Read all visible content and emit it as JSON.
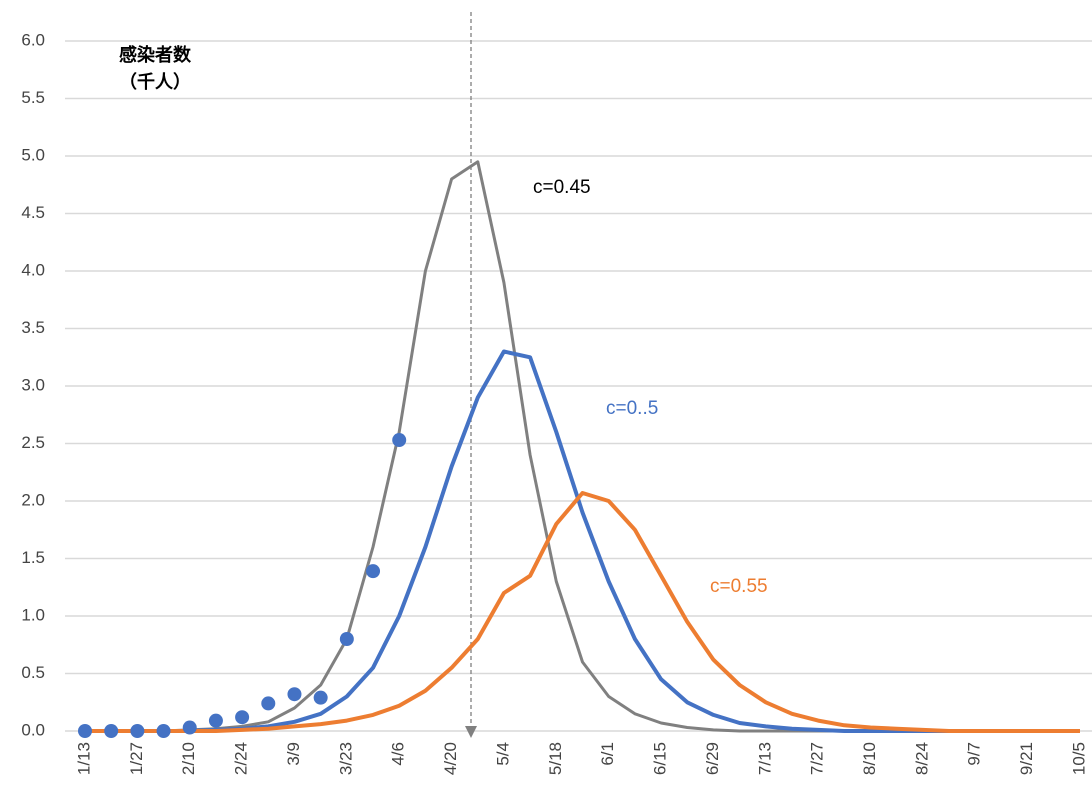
{
  "chart_data": {
    "type": "line",
    "ylabel": [
      "感染者数",
      "（千人）"
    ],
    "categories": [
      "1/13",
      null,
      "1/27",
      null,
      "2/10",
      null,
      "2/24",
      null,
      "3/9",
      null,
      "3/23",
      null,
      "4/6",
      null,
      "4/20",
      null,
      "5/4",
      null,
      "5/18",
      null,
      "6/1",
      null,
      "6/15",
      null,
      "6/29",
      null,
      "7/13",
      null,
      "7/27",
      null,
      "8/10",
      null,
      "8/24",
      null,
      "9/7",
      null,
      "9/21",
      null,
      "10/5"
    ],
    "ylim": [
      0,
      6
    ],
    "yticks": [
      {
        "value": 0,
        "label": "0.0"
      },
      {
        "value": 0.5,
        "label": "0.5"
      },
      {
        "value": 1,
        "label": "1.0"
      },
      {
        "value": 1.5,
        "label": "1.5"
      },
      {
        "value": 2,
        "label": "2.0"
      },
      {
        "value": 2.5,
        "label": "2.5"
      },
      {
        "value": 3,
        "label": "3.0"
      },
      {
        "value": 3.5,
        "label": "3.5"
      },
      {
        "value": 4,
        "label": "4.0"
      },
      {
        "value": 4.5,
        "label": "4.5"
      },
      {
        "value": 5,
        "label": "5.0"
      },
      {
        "value": 5.5,
        "label": "5.5"
      },
      {
        "value": 6,
        "label": "6.0"
      }
    ],
    "grid": true,
    "series": [
      {
        "color": "#808080",
        "width": 3,
        "values": [
          0,
          0,
          0,
          0,
          0.01,
          0.02,
          0.04,
          0.08,
          0.2,
          0.4,
          0.8,
          1.6,
          2.6,
          4.0,
          4.8,
          4.95,
          3.9,
          2.4,
          1.3,
          0.6,
          0.3,
          0.15,
          0.07,
          0.03,
          0.01,
          0,
          0,
          0,
          0,
          0,
          0,
          0,
          0,
          0,
          0,
          0,
          0,
          0,
          0
        ]
      },
      {
        "color": "#4472c4",
        "width": 4,
        "values": [
          0,
          0,
          0,
          0,
          0,
          0.01,
          0.02,
          0.04,
          0.08,
          0.15,
          0.3,
          0.55,
          1.0,
          1.6,
          2.3,
          2.9,
          3.3,
          3.25,
          2.6,
          1.9,
          1.3,
          0.8,
          0.45,
          0.25,
          0.14,
          0.07,
          0.04,
          0.02,
          0.01,
          0,
          0,
          0,
          0,
          0,
          0,
          0,
          0,
          0,
          0
        ]
      },
      {
        "color": "#ed7d31",
        "width": 4,
        "values": [
          0,
          0,
          0,
          0,
          0,
          0,
          0.01,
          0.02,
          0.04,
          0.06,
          0.09,
          0.14,
          0.22,
          0.35,
          0.55,
          0.8,
          1.2,
          1.35,
          1.8,
          2.07,
          2.0,
          1.75,
          1.35,
          0.95,
          0.62,
          0.4,
          0.25,
          0.15,
          0.09,
          0.05,
          0.03,
          0.02,
          0.01,
          0,
          0,
          0,
          0,
          0,
          0
        ]
      },
      {
        "color": "#4472c4",
        "marker": true,
        "values": [
          0,
          0,
          0,
          0,
          0.03,
          0.09,
          0.12,
          0.24,
          0.32,
          0.29,
          0.8,
          1.39,
          2.53,
          null,
          null,
          null,
          null,
          null,
          null,
          null,
          null,
          null,
          null,
          null,
          null,
          null,
          null,
          null,
          null,
          null,
          null,
          null,
          null,
          null,
          null,
          null,
          null,
          null,
          null
        ]
      }
    ],
    "annotations": [
      {
        "text": "c=0.45",
        "color": "#000000"
      },
      {
        "text": "c=0..5",
        "color": "#4472c4"
      },
      {
        "text": "c=0.55",
        "color": "#ed7d31"
      }
    ]
  }
}
